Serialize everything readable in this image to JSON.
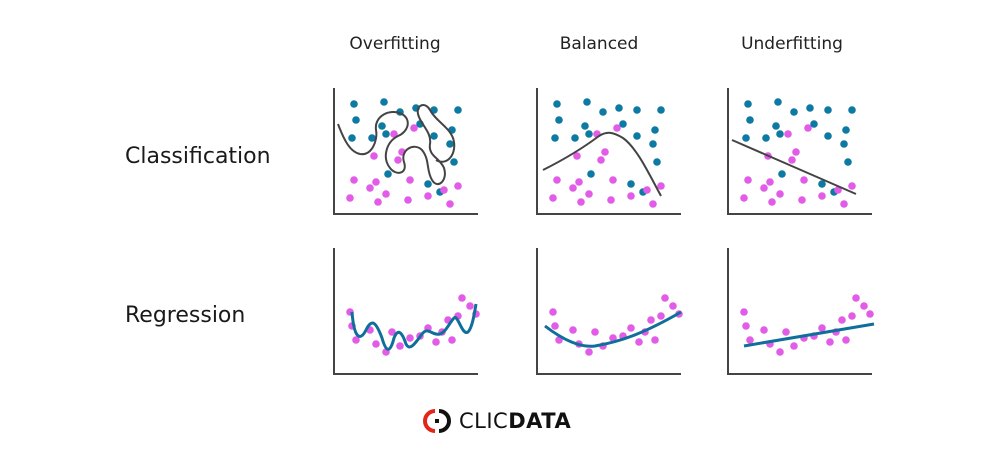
{
  "columns": [
    "Overfitting",
    "Balanced",
    "Underfitting"
  ],
  "rows": [
    "Classification",
    "Regression"
  ],
  "colors": {
    "class_a": "#0d7aa3",
    "class_b": "#e25ce8",
    "classification_curve": "#444444",
    "regression_curve": "#0f6f9a",
    "axis": "#444444",
    "logo_red": "#e1261c",
    "logo_dark": "#111111"
  },
  "brand": {
    "logo_text_light": "CLIC",
    "logo_text_bold": "DATA",
    "logo_icon": "clicdata-logo-icon"
  }
}
